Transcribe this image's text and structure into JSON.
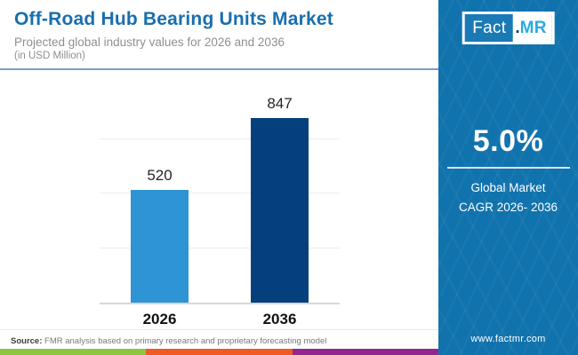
{
  "header": {
    "title": "Off-Road Hub Bearing Units Market",
    "subtitle": "Projected global industry values for 2026 and 2036",
    "unit_note": "(in USD Million)"
  },
  "chart_data": {
    "type": "bar",
    "categories": [
      "2026",
      "2036"
    ],
    "values": [
      520,
      847
    ],
    "value_labels": [
      "520",
      "847"
    ],
    "series_colors": [
      "#2f94d4",
      "#05407d"
    ],
    "title": "Off-Road Hub Bearing Units Market",
    "xlabel": "",
    "ylabel": "USD Million",
    "ylim": [
      0,
      1000
    ],
    "gridlines": [
      250,
      500,
      750
    ],
    "grid": true,
    "legend": "none"
  },
  "sidebar": {
    "bg_color": "#1173ad",
    "logo": {
      "part1": "Fact",
      "dot": ".",
      "part2": "MR"
    },
    "cagr_value": "5.0%",
    "cagr_label_line1": "Global Market",
    "cagr_label_line2": "CAGR 2026- 2036",
    "website": "www.factmr.com"
  },
  "footer": {
    "source_label": "Source:",
    "source_text": "FMR analysis based on primary research and proprietary forecasting model",
    "stripe_colors": [
      "#8cc63f",
      "#f15a24",
      "#93278f"
    ]
  }
}
